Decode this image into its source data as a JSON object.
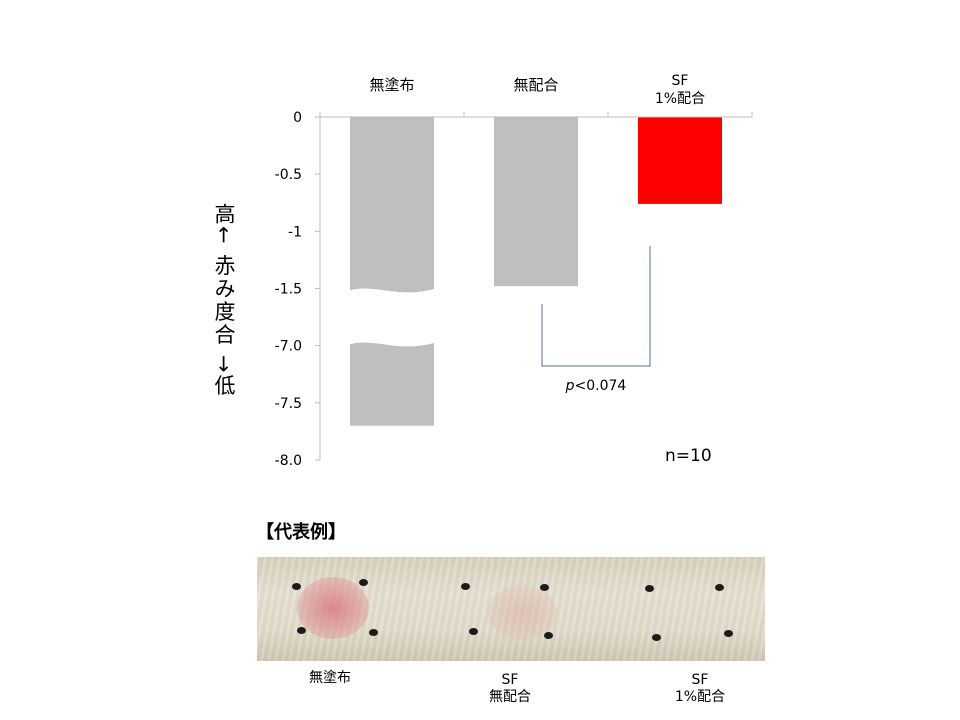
{
  "chart_data": {
    "type": "bar",
    "categories": [
      {
        "id": "none",
        "lines": [
          "無塗布"
        ]
      },
      {
        "id": "base",
        "lines": [
          "無配合"
        ]
      },
      {
        "id": "sf",
        "lines": [
          "SF",
          "1%配合"
        ]
      }
    ],
    "values": [
      -7.7,
      -1.48,
      -0.76
    ],
    "bar_colors": [
      "#bfbfbf",
      "#bfbfbf",
      "#ff0000"
    ],
    "axis_break": {
      "lower_edge": -1.75,
      "upper_edge": -6.95
    },
    "y_ticks": [
      "0",
      "-0.5",
      "-1",
      "-1.5",
      "-7.0",
      "-7.5",
      "-8.0"
    ],
    "ylabel": "高← 赤み度合 →低",
    "significance": {
      "between": [
        "base",
        "sf"
      ],
      "label_italic": "p",
      "label_rest": "<0.074"
    },
    "n_label": "n=10",
    "grid": false
  },
  "example": {
    "title": "【代表例】",
    "labels": [
      {
        "lines": [
          "無塗布"
        ]
      },
      {
        "lines": [
          "SF",
          "無配合"
        ]
      },
      {
        "lines": [
          "SF",
          "1%配合"
        ]
      }
    ]
  }
}
